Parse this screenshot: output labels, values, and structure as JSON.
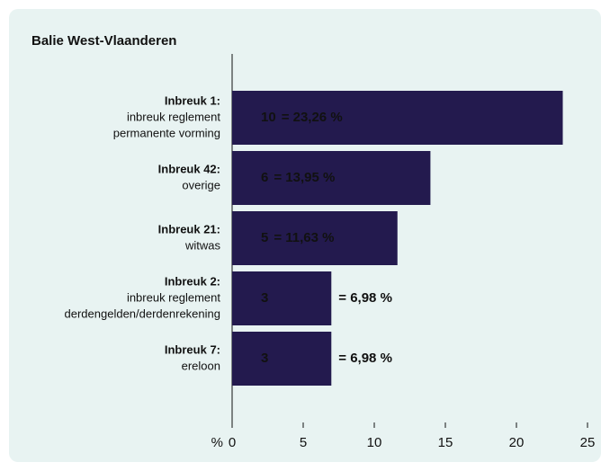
{
  "chart_data": {
    "type": "hbar",
    "title": "Balie West-Vlaanderen",
    "categories": [
      "Inbreuk 1:",
      "Inbreuk 42:",
      "Inbreuk 21:",
      "Inbreuk 2:",
      "Inbreuk 7:"
    ],
    "descriptions": [
      [
        "inbreuk reglement",
        "permanente vorming"
      ],
      [
        "overige"
      ],
      [
        "witwas"
      ],
      [
        "inbreuk reglement",
        "derdengelden/derdenrekening"
      ],
      [
        "ereloon"
      ]
    ],
    "counts": [
      10,
      6,
      5,
      3,
      3
    ],
    "values": [
      23.26,
      13.95,
      11.63,
      6.98,
      6.98
    ],
    "value_labels": [
      "= 23,26 %",
      "= 13,95 %",
      "= 11,63 %",
      "= 6,98 %",
      "= 6,98 %"
    ],
    "color": "#231a4e",
    "xlabel": "%",
    "xlim": [
      0,
      25
    ],
    "xticks": [
      0,
      5,
      10,
      15,
      20,
      25
    ]
  }
}
